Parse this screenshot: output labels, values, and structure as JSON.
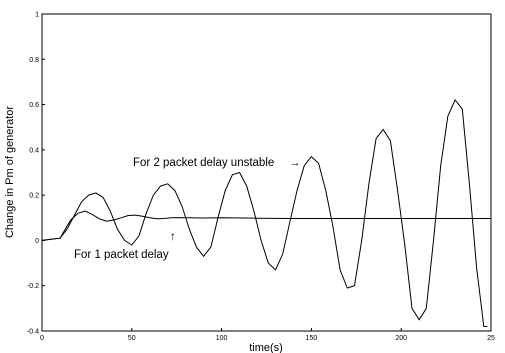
{
  "chart_data": {
    "type": "line",
    "title": "",
    "xlabel": "time(s)",
    "ylabel": "Change in Pm of generator",
    "xlim": [
      0,
      250
    ],
    "ylim": [
      -0.4,
      1
    ],
    "x_ticks": [
      "0",
      "50",
      "100",
      "150",
      "200",
      "25"
    ],
    "y_ticks": [
      "1",
      "0.8",
      "0.6",
      "0.4",
      "0.2",
      "0",
      "-0.2",
      "-0.4"
    ],
    "grid": false,
    "legend": "none",
    "annotations": [
      {
        "text": "For 2 packet delay unstable",
        "arrow": "→"
      },
      {
        "text": "For 1 packet delay",
        "arrow": "↑"
      }
    ],
    "series": [
      {
        "x": [
          0,
          10,
          13,
          16,
          20,
          24,
          28,
          32,
          36,
          40,
          44,
          48,
          52,
          56,
          60,
          64,
          68,
          72,
          76,
          80,
          90,
          100,
          120,
          140,
          160,
          180,
          200,
          220,
          240,
          250
        ],
        "values": [
          0,
          0.01,
          0.05,
          0.09,
          0.12,
          0.13,
          0.115,
          0.095,
          0.085,
          0.09,
          0.1,
          0.11,
          0.112,
          0.107,
          0.1,
          0.096,
          0.097,
          0.1,
          0.101,
          0.1,
          0.099,
          0.1,
          0.098,
          0.097,
          0.097,
          0.097,
          0.097,
          0.097,
          0.097,
          0.097
        ]
      },
      {
        "x": [
          0,
          10,
          14,
          18,
          22,
          26,
          30,
          34,
          38,
          42,
          46,
          50,
          54,
          58,
          62,
          66,
          70,
          74,
          78,
          82,
          86,
          90,
          94,
          98,
          102,
          106,
          110,
          114,
          118,
          122,
          126,
          130,
          134,
          138,
          142,
          146,
          150,
          154,
          158,
          162,
          166,
          170,
          174,
          178,
          182,
          186,
          190,
          194,
          198,
          202,
          206,
          210,
          214,
          218,
          222,
          226,
          230,
          234,
          238,
          242,
          246,
          248
        ],
        "values": [
          0,
          0.01,
          0.05,
          0.11,
          0.17,
          0.2,
          0.21,
          0.19,
          0.13,
          0.05,
          0.0,
          -0.02,
          0.02,
          0.12,
          0.2,
          0.24,
          0.25,
          0.22,
          0.15,
          0.05,
          -0.03,
          -0.07,
          -0.03,
          0.1,
          0.22,
          0.29,
          0.3,
          0.24,
          0.13,
          0.0,
          -0.1,
          -0.13,
          -0.06,
          0.08,
          0.22,
          0.33,
          0.37,
          0.34,
          0.22,
          0.06,
          -0.13,
          -0.21,
          -0.2,
          0.0,
          0.25,
          0.45,
          0.49,
          0.44,
          0.22,
          -0.02,
          -0.3,
          -0.35,
          -0.3,
          0.0,
          0.33,
          0.55,
          0.62,
          0.58,
          0.25,
          -0.12,
          -0.38,
          -0.38
        ]
      }
    ]
  }
}
